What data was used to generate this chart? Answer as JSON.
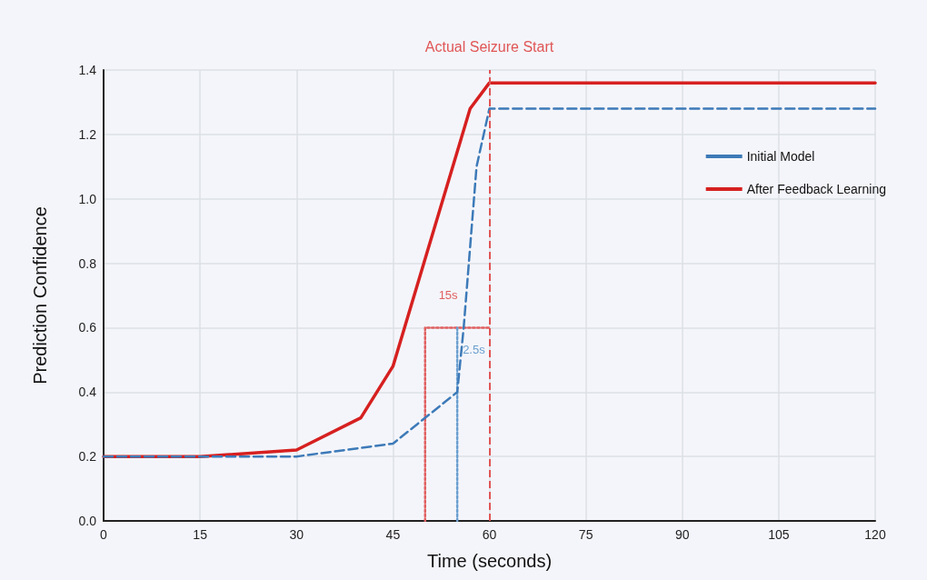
{
  "chart_data": {
    "type": "line",
    "xlabel": "Time (seconds)",
    "ylabel": "Prediction Confidence",
    "xlim": [
      0,
      120
    ],
    "xticks": [
      0,
      15,
      30,
      45,
      60,
      75,
      90,
      105,
      120
    ],
    "ylim": [
      0,
      1.4
    ],
    "yticks": [
      {
        "value": 0,
        "label": "0.0"
      },
      {
        "value": 0.2,
        "label": "0.2"
      },
      {
        "value": 0.4,
        "label": "0.4"
      },
      {
        "value": 0.6,
        "label": "0.6"
      },
      {
        "value": 0.8,
        "label": "0.8"
      },
      {
        "value": 1,
        "label": "1.0"
      },
      {
        "value": 1.2,
        "label": "1.2"
      },
      {
        "value": 1.4,
        "label": "1.4"
      }
    ],
    "grid": true,
    "legend": "top right",
    "marker": "none",
    "series": [
      {
        "name": "Initial Model",
        "color": "#3d7ab8",
        "line_style": "dashed",
        "x": [
          0,
          15,
          30,
          45,
          55,
          56,
          58,
          60,
          120
        ],
        "values": [
          0.2,
          0.2,
          0.2,
          0.24,
          0.4,
          0.6,
          1.1,
          1.28,
          1.28
        ]
      },
      {
        "name": "After Feedback Learning",
        "color": "#d62020",
        "line_style": "solid",
        "x": [
          0,
          15,
          30,
          40,
          45,
          57,
          60,
          120
        ],
        "values": [
          0.2,
          0.2,
          0.22,
          0.32,
          0.48,
          1.28,
          1.36,
          1.36
        ]
      },
      {
        "color": "#e06060",
        "line_style": "dotted",
        "x": [
          50,
          50,
          60
        ],
        "values": [
          0,
          0.6,
          0.6
        ]
      },
      {
        "color": "#6a9fd0",
        "line_style": "dotted",
        "x": [
          55,
          55
        ],
        "values": [
          0,
          0.6
        ]
      }
    ],
    "ref_lines": [
      {
        "axis": "x",
        "value": 60,
        "label": "Actual Seizure Start",
        "color": "#e05555",
        "line_style": "dashed"
      }
    ],
    "annotations": [
      "15s",
      "2.5s"
    ]
  }
}
